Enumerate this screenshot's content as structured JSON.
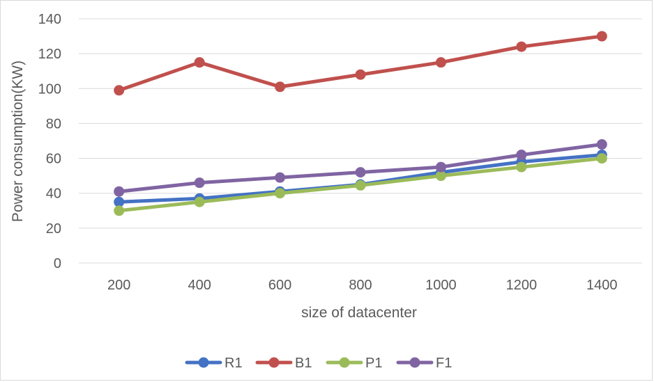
{
  "chart_data": {
    "type": "line",
    "title": "",
    "xlabel": "size of datacenter",
    "ylabel": "Power consumption(KW)",
    "categories": [
      "200",
      "400",
      "600",
      "800",
      "1000",
      "1200",
      "1400"
    ],
    "ylim": [
      0,
      140
    ],
    "yticks": [
      0,
      20,
      40,
      60,
      80,
      100,
      120,
      140
    ],
    "grid": "horizontal",
    "legend_position": "bottom",
    "series": [
      {
        "name": "R1",
        "color": "#4472C4",
        "values": [
          35,
          37,
          41,
          45,
          52,
          58,
          62
        ]
      },
      {
        "name": "B1",
        "color": "#C0504D",
        "values": [
          99,
          115,
          101,
          108,
          115,
          124,
          130
        ]
      },
      {
        "name": "P1",
        "color": "#9BBB59",
        "values": [
          30,
          35,
          40,
          44.5,
          50,
          55,
          60
        ]
      },
      {
        "name": "F1",
        "color": "#8064A2",
        "values": [
          41,
          46,
          49,
          52,
          55,
          62,
          68
        ]
      }
    ]
  }
}
